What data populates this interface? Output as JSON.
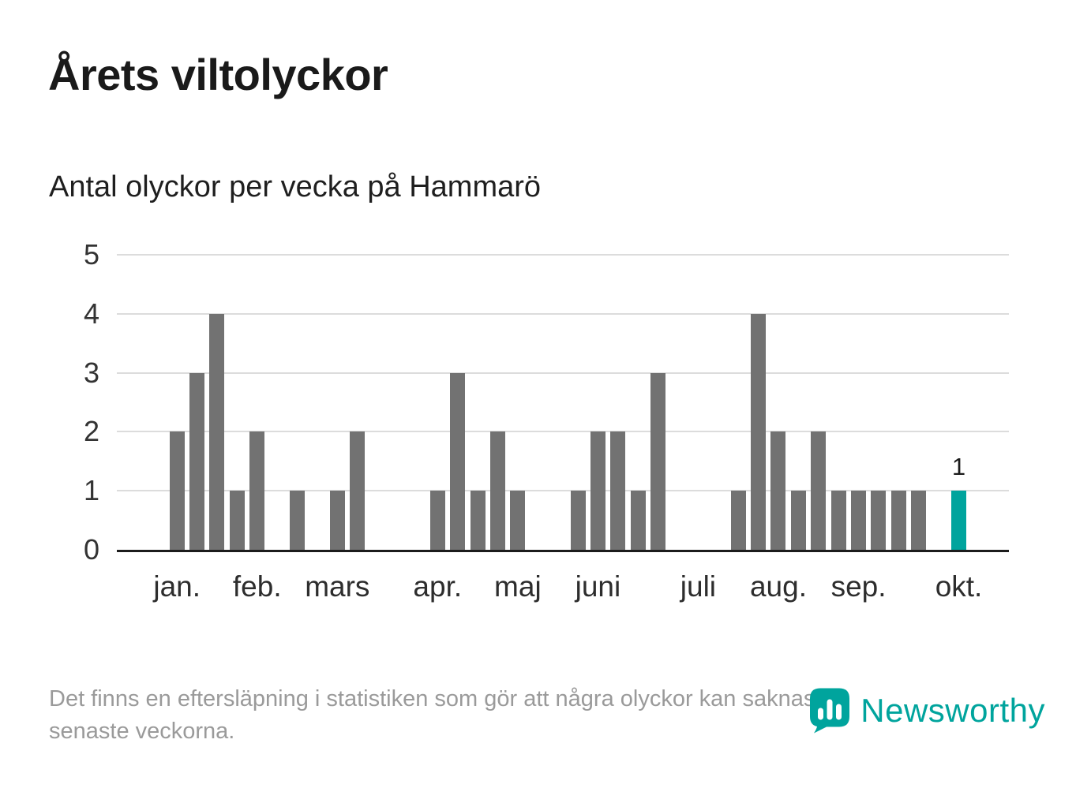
{
  "title": "Årets viltolyckor",
  "subtitle": "Antal olyckor per vecka på Hammarö",
  "footer": {
    "note_lines": [
      "Det finns en eftersläpning i statistiken som gör att några olyckor kan saknas de",
      "senaste veckorna."
    ],
    "brand": "Newsworthy"
  },
  "colors": {
    "bar": "#727272",
    "accent": "#00a49d",
    "grid": "#dcdcdc",
    "axis": "#1c1c1c",
    "muted_text": "#9a9a9a"
  },
  "icons": {
    "brand_icon": "newsworthy-badge-barchart"
  },
  "chart_data": {
    "type": "bar",
    "title": "Antal olyckor per vecka på Hammarö",
    "xlabel": "",
    "ylabel": "",
    "ylim": [
      0,
      5
    ],
    "yticks": [
      0,
      1,
      2,
      3,
      4,
      5
    ],
    "grid": true,
    "legend": null,
    "x_unit": "vecka",
    "x_padding_slots": [
      2.5,
      2
    ],
    "values": [
      2,
      3,
      4,
      1,
      2,
      0,
      1,
      0,
      1,
      2,
      0,
      0,
      0,
      1,
      3,
      1,
      2,
      1,
      0,
      0,
      1,
      2,
      2,
      1,
      3,
      0,
      0,
      0,
      1,
      4,
      2,
      1,
      2,
      1,
      1,
      1,
      1,
      1,
      0,
      1
    ],
    "highlight_index": 39,
    "highlight_label": "1",
    "months": [
      {
        "label": "jan.",
        "week": 1
      },
      {
        "label": "feb.",
        "week": 5
      },
      {
        "label": "mars",
        "week": 9
      },
      {
        "label": "apr.",
        "week": 14
      },
      {
        "label": "maj",
        "week": 18
      },
      {
        "label": "juni",
        "week": 22
      },
      {
        "label": "juli",
        "week": 27
      },
      {
        "label": "aug.",
        "week": 31
      },
      {
        "label": "sep.",
        "week": 35
      },
      {
        "label": "okt.",
        "week": 40
      }
    ]
  }
}
